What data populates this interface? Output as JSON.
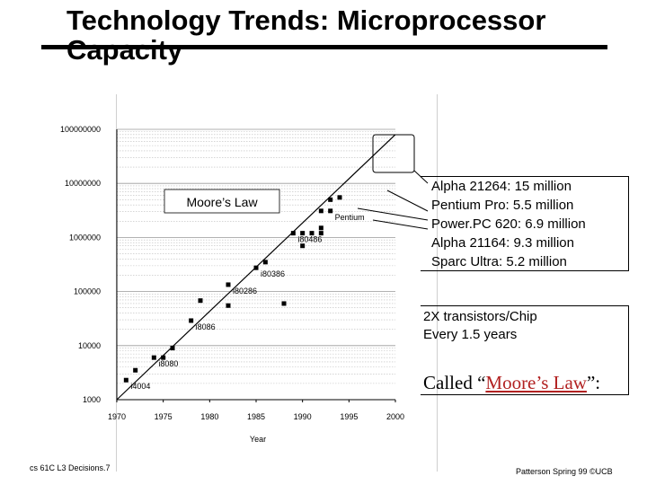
{
  "slide": {
    "title_line1": "Technology Trends: Microprocessor",
    "title_line2": "Capacity",
    "footer_left": "cs 61C  L3 Decisions.7",
    "footer_right": "Patterson Spring 99 ©UCB"
  },
  "facts": [
    "Alpha 21264: 15 million",
    "Pentium Pro: 5.5 million",
    "Power.PC 620: 6.9 million",
    "Alpha 21164: 9.3 million",
    "Sparc Ultra: 5.2 million"
  ],
  "rule_text": [
    "2X transistors/Chip",
    "Every 1.5 years"
  ],
  "called": {
    "prefix": "Called “",
    "law": "Moore’s Law",
    "suffix": "”:"
  },
  "chart_data": {
    "type": "scatter",
    "title": "",
    "xlabel": "Year",
    "ylabel": "",
    "xlim": [
      1970,
      2000
    ],
    "ylim": [
      1000,
      100000000
    ],
    "yscale": "log",
    "x_ticks": [
      "1970",
      "1975",
      "1980",
      "1985",
      "1990",
      "1995",
      "2000"
    ],
    "y_ticks": [
      "1000",
      "10000",
      "100000",
      "1000000",
      "10000000",
      "100000000"
    ],
    "grid": "horizontal minor gridlines (log)",
    "legend_label": "Moore’s Law",
    "trend_line": {
      "from": [
        1970,
        1000
      ],
      "to": [
        2000,
        80000000
      ]
    },
    "points": [
      {
        "x": 1971,
        "y": 2300
      },
      {
        "x": 1972,
        "y": 3500
      },
      {
        "x": 1974,
        "y": 6000
      },
      {
        "x": 1975,
        "y": 6000
      },
      {
        "x": 1976,
        "y": 9000
      },
      {
        "x": 1978,
        "y": 29000
      },
      {
        "x": 1979,
        "y": 68000
      },
      {
        "x": 1982,
        "y": 134000
      },
      {
        "x": 1982,
        "y": 55000
      },
      {
        "x": 1985,
        "y": 275000
      },
      {
        "x": 1986,
        "y": 350000
      },
      {
        "x": 1988,
        "y": 60000
      },
      {
        "x": 1989,
        "y": 1200000
      },
      {
        "x": 1990,
        "y": 1200000
      },
      {
        "x": 1990,
        "y": 700000
      },
      {
        "x": 1991,
        "y": 1200000
      },
      {
        "x": 1992,
        "y": 1200000
      },
      {
        "x": 1992,
        "y": 1500000
      },
      {
        "x": 1993,
        "y": 3100000
      },
      {
        "x": 1993,
        "y": 5000000
      },
      {
        "x": 1994,
        "y": 5500000
      },
      {
        "x": 1992,
        "y": 3100000
      }
    ],
    "annotations": [
      {
        "label": "i4004",
        "x": 1971,
        "y": 2300
      },
      {
        "label": "i8080",
        "x": 1974,
        "y": 6000
      },
      {
        "label": "i8086",
        "x": 1978,
        "y": 29000
      },
      {
        "label": "i80286",
        "x": 1982,
        "y": 134000
      },
      {
        "label": "i80386",
        "x": 1985,
        "y": 275000
      },
      {
        "label": "i80486",
        "x": 1989,
        "y": 1200000
      },
      {
        "label": "Pentium",
        "x": 1993,
        "y": 3100000
      }
    ],
    "colors": {
      "line": "#000000",
      "grid": "#bdbdbd",
      "marker": "#000000"
    }
  }
}
